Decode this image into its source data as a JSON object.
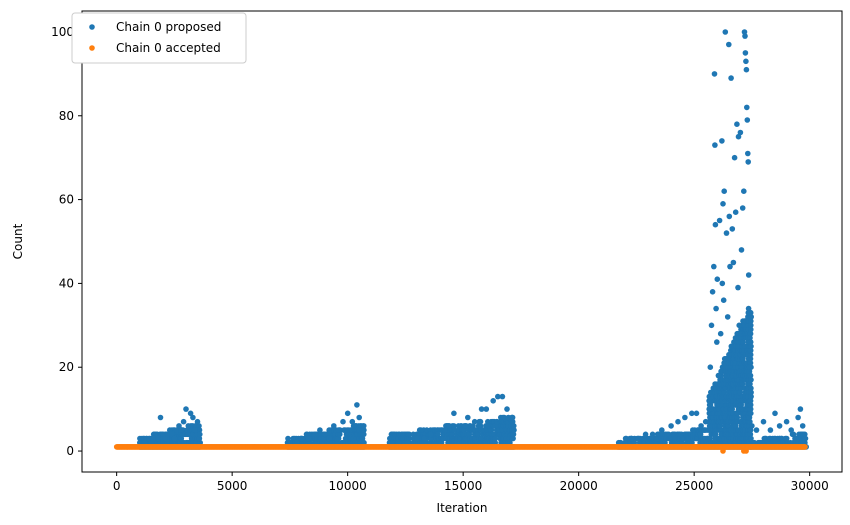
{
  "chart_data": {
    "type": "scatter",
    "title": "",
    "xlabel": "Iteration",
    "ylabel": "Count",
    "xlim": [
      -1500,
      31400
    ],
    "ylim": [
      -5,
      105
    ],
    "xticks": [
      0,
      5000,
      10000,
      15000,
      20000,
      25000,
      30000
    ],
    "yticks": [
      0,
      20,
      40,
      60,
      80,
      100
    ],
    "grid": false,
    "legend_position": "top-left",
    "series": [
      {
        "name": "Chain 0 proposed",
        "color": "#1f77b4",
        "points": [
          [
            1000,
            2
          ],
          [
            1200,
            2
          ],
          [
            1400,
            3
          ],
          [
            1500,
            2
          ],
          [
            1600,
            3
          ],
          [
            1800,
            3
          ],
          [
            1900,
            8
          ],
          [
            2000,
            4
          ],
          [
            2100,
            3
          ],
          [
            2200,
            4
          ],
          [
            2300,
            5
          ],
          [
            2400,
            4
          ],
          [
            2500,
            3
          ],
          [
            2600,
            5
          ],
          [
            2700,
            6
          ],
          [
            2800,
            5
          ],
          [
            2900,
            7
          ],
          [
            3000,
            10
          ],
          [
            3100,
            6
          ],
          [
            3200,
            9
          ],
          [
            3300,
            8
          ],
          [
            3400,
            5
          ],
          [
            3500,
            7
          ],
          [
            3600,
            4
          ],
          [
            7500,
            2
          ],
          [
            7800,
            2
          ],
          [
            8000,
            3
          ],
          [
            8300,
            3
          ],
          [
            8600,
            4
          ],
          [
            8800,
            5
          ],
          [
            9000,
            4
          ],
          [
            9200,
            5
          ],
          [
            9400,
            6
          ],
          [
            9600,
            5
          ],
          [
            9800,
            7
          ],
          [
            10000,
            9
          ],
          [
            10200,
            7
          ],
          [
            10400,
            11
          ],
          [
            10500,
            8
          ],
          [
            10700,
            6
          ],
          [
            11900,
            2
          ],
          [
            12200,
            2
          ],
          [
            12600,
            2
          ],
          [
            13000,
            3
          ],
          [
            13300,
            3
          ],
          [
            13600,
            4
          ],
          [
            13900,
            4
          ],
          [
            14200,
            5
          ],
          [
            14400,
            6
          ],
          [
            14600,
            9
          ],
          [
            14800,
            6
          ],
          [
            15100,
            6
          ],
          [
            15200,
            8
          ],
          [
            15500,
            7
          ],
          [
            15800,
            10
          ],
          [
            16000,
            10
          ],
          [
            16300,
            12
          ],
          [
            16500,
            13
          ],
          [
            16700,
            13
          ],
          [
            16900,
            10
          ],
          [
            17100,
            8
          ],
          [
            21800,
            2
          ],
          [
            22000,
            2
          ],
          [
            22300,
            3
          ],
          [
            22600,
            3
          ],
          [
            22900,
            4
          ],
          [
            23200,
            4
          ],
          [
            23600,
            5
          ],
          [
            24000,
            6
          ],
          [
            24300,
            7
          ],
          [
            24600,
            8
          ],
          [
            24900,
            9
          ],
          [
            25100,
            9
          ],
          [
            25300,
            6
          ],
          [
            25500,
            7
          ],
          [
            25700,
            20
          ],
          [
            25750,
            30
          ],
          [
            25800,
            38
          ],
          [
            25850,
            44
          ],
          [
            25880,
            90
          ],
          [
            25900,
            73
          ],
          [
            25920,
            54
          ],
          [
            25950,
            34
          ],
          [
            25980,
            26
          ],
          [
            26000,
            41
          ],
          [
            26050,
            18
          ],
          [
            26100,
            55
          ],
          [
            26150,
            28
          ],
          [
            26200,
            74
          ],
          [
            26220,
            40
          ],
          [
            26250,
            59
          ],
          [
            26280,
            36
          ],
          [
            26300,
            62
          ],
          [
            26320,
            22
          ],
          [
            26350,
            100
          ],
          [
            26400,
            52
          ],
          [
            26450,
            32
          ],
          [
            26500,
            97
          ],
          [
            26520,
            56
          ],
          [
            26550,
            44
          ],
          [
            26600,
            89
          ],
          [
            26650,
            53
          ],
          [
            26700,
            45
          ],
          [
            26750,
            70
          ],
          [
            26800,
            57
          ],
          [
            26850,
            78
          ],
          [
            26900,
            39
          ],
          [
            26920,
            75
          ],
          [
            26950,
            30
          ],
          [
            27000,
            76
          ],
          [
            27050,
            48
          ],
          [
            27100,
            58
          ],
          [
            27150,
            62
          ],
          [
            27180,
            100
          ],
          [
            27200,
            99
          ],
          [
            27220,
            95
          ],
          [
            27240,
            93
          ],
          [
            27260,
            91
          ],
          [
            27280,
            82
          ],
          [
            27300,
            79
          ],
          [
            27320,
            71
          ],
          [
            27340,
            69
          ],
          [
            27360,
            42
          ],
          [
            27380,
            33
          ],
          [
            27400,
            20
          ],
          [
            27500,
            6
          ],
          [
            27700,
            5
          ],
          [
            28000,
            7
          ],
          [
            28300,
            5
          ],
          [
            28500,
            9
          ],
          [
            28700,
            6
          ],
          [
            29000,
            7
          ],
          [
            29200,
            5
          ],
          [
            29500,
            8
          ],
          [
            29600,
            10
          ],
          [
            29700,
            6
          ]
        ],
        "bands": [
          [
            1000,
            3600,
            1,
            1,
            6
          ],
          [
            7400,
            10750,
            1,
            1,
            6
          ],
          [
            11800,
            17200,
            1,
            1,
            8
          ],
          [
            21700,
            25650,
            1,
            1,
            5
          ],
          [
            25650,
            27450,
            1,
            1,
            35
          ],
          [
            27450,
            29850,
            1,
            1,
            4
          ]
        ]
      },
      {
        "name": "Chain 0 accepted",
        "color": "#ff7f0e",
        "points": [
          [
            26250,
            0
          ],
          [
            27150,
            0
          ],
          [
            27250,
            0
          ]
        ],
        "bands": [
          [
            0,
            29800,
            1,
            1,
            1
          ]
        ]
      }
    ]
  }
}
